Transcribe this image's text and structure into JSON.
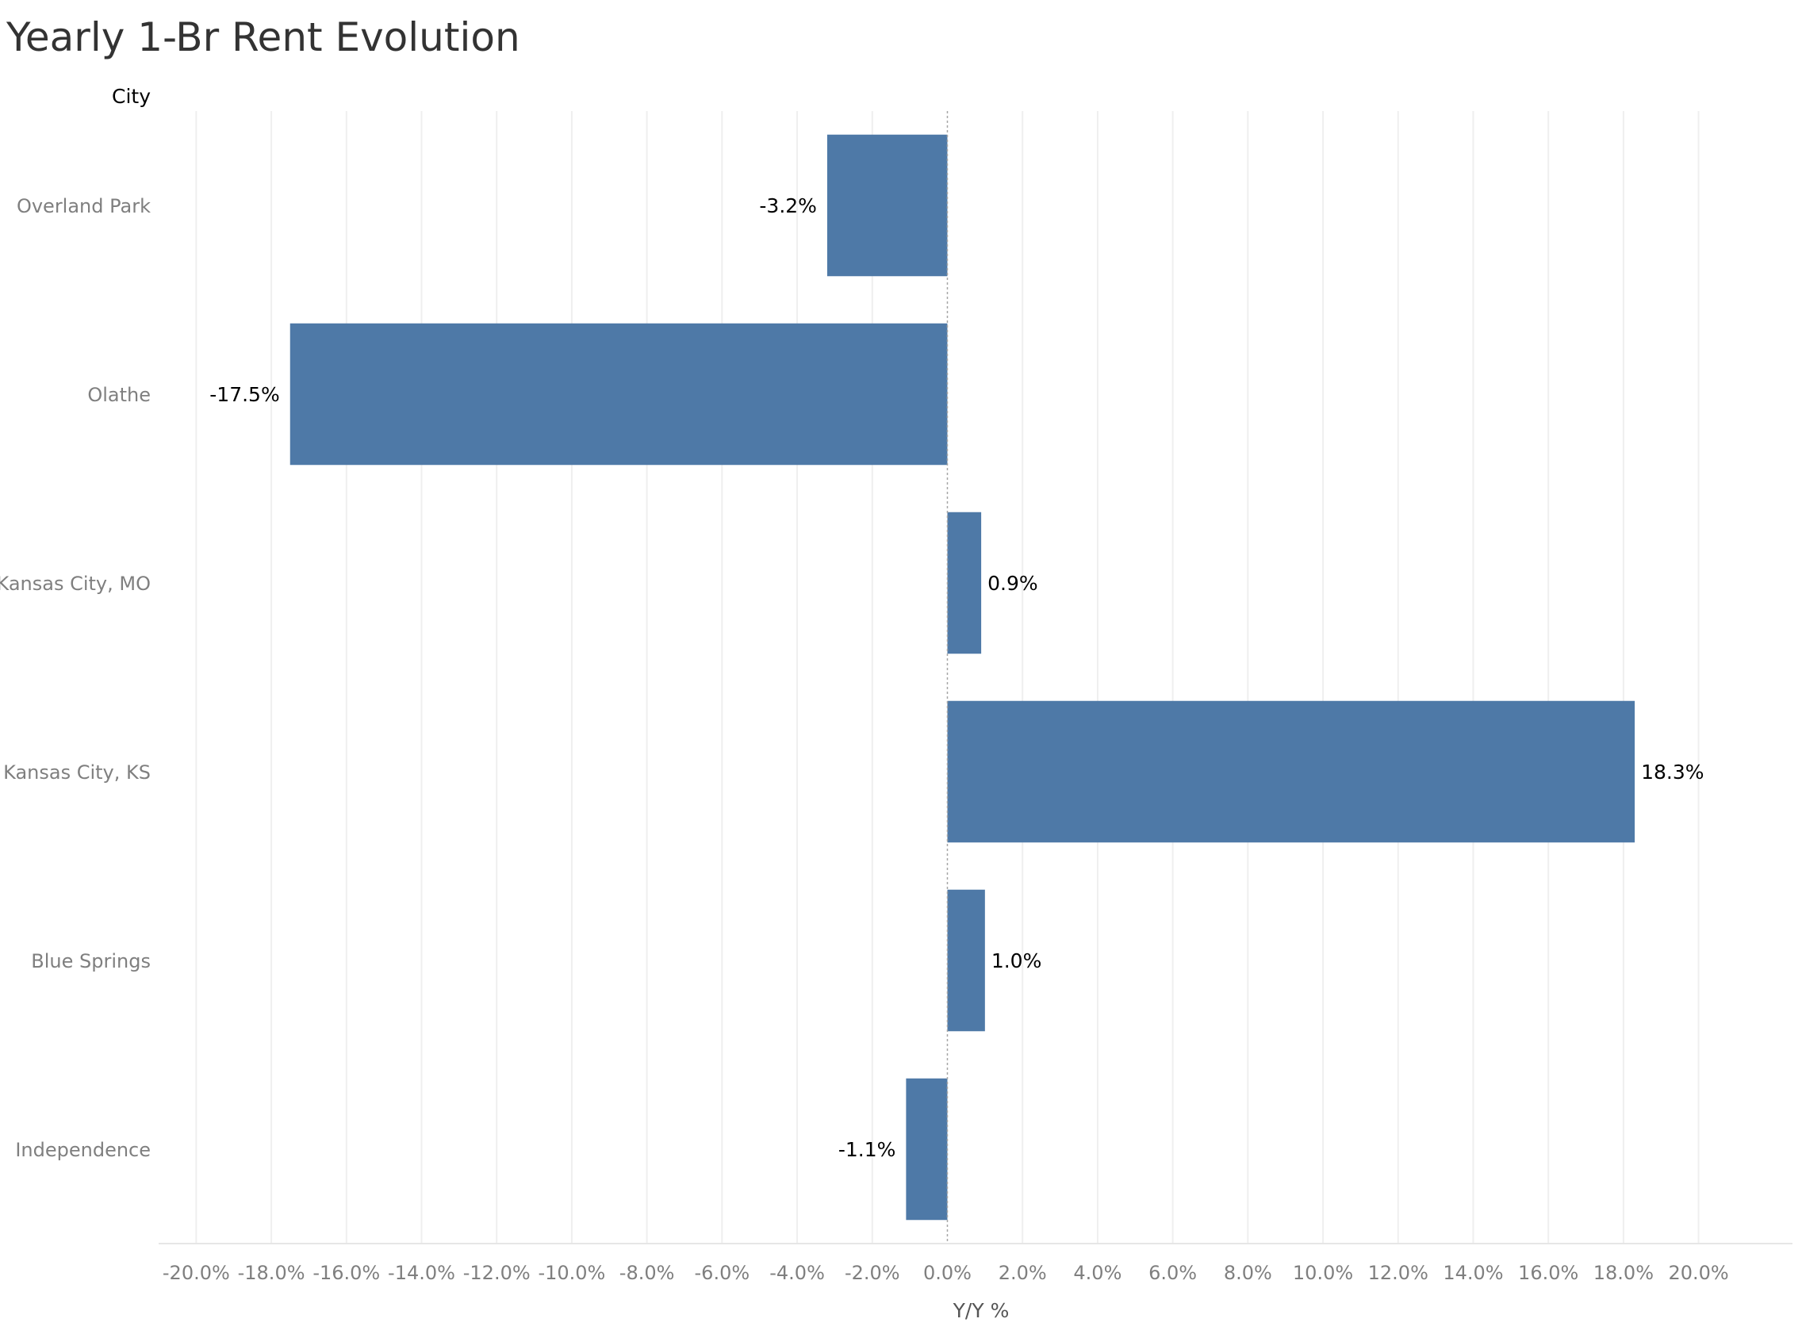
{
  "chart_data": {
    "type": "bar",
    "orientation": "horizontal",
    "title": "Yearly 1-Br Rent Evolution",
    "row_header": "City",
    "xlabel": "Y/Y %",
    "categories": [
      "Overland Park",
      "Olathe",
      "Kansas City, MO",
      "Kansas City, KS",
      "Blue Springs",
      "Independence"
    ],
    "values": [
      -3.2,
      -17.5,
      0.9,
      18.3,
      1.0,
      -1.1
    ],
    "data_labels": [
      "-3.2%",
      "-17.5%",
      "0.9%",
      "18.3%",
      "1.0%",
      "-1.1%"
    ],
    "xlim": [
      -21.0,
      22.5
    ],
    "x_ticks": [
      -20,
      -18,
      -16,
      -14,
      -12,
      -10,
      -8,
      -6,
      -4,
      -2,
      0,
      2,
      4,
      6,
      8,
      10,
      12,
      14,
      16,
      18,
      20
    ],
    "x_tick_labels": [
      "-20.0%",
      "-18.0%",
      "-16.0%",
      "-14.0%",
      "-12.0%",
      "-10.0%",
      "-8.0%",
      "-6.0%",
      "-4.0%",
      "-2.0%",
      "0.0%",
      "2.0%",
      "4.0%",
      "6.0%",
      "8.0%",
      "10.0%",
      "12.0%",
      "14.0%",
      "16.0%",
      "18.0%",
      "20.0%"
    ],
    "grid": true,
    "bar_color": "#4e79a7",
    "title_color": "#333333",
    "axis_text_color": "#7f7f7f",
    "label_color": "#000000",
    "grid_color": "#efefef",
    "zero_line_color": "#a6a6a6"
  }
}
